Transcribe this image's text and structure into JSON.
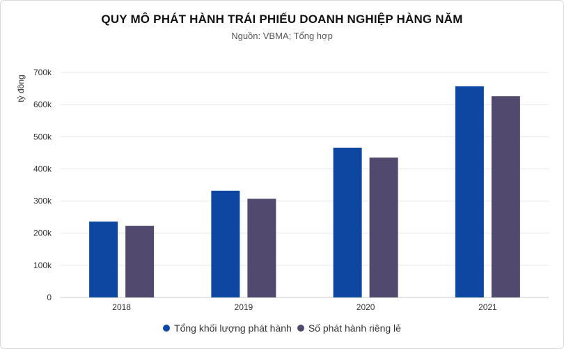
{
  "chart_data": {
    "type": "bar",
    "title": "QUY MÔ PHÁT HÀNH TRÁI PHIẾU DOANH NGHIỆP HÀNG NĂM",
    "subtitle": "Nguồn: VBMA; Tổng hợp",
    "ylabel": "tỷ đồng",
    "xlabel": "",
    "categories": [
      "2018",
      "2019",
      "2020",
      "2021"
    ],
    "ylim": [
      0,
      700000
    ],
    "yticks": [
      0,
      100000,
      200000,
      300000,
      400000,
      500000,
      600000,
      700000
    ],
    "ytick_labels": [
      "0",
      "100k",
      "200k",
      "300k",
      "400k",
      "500k",
      "600k",
      "700k"
    ],
    "grid": true,
    "legend_position": "bottom",
    "series": [
      {
        "name": "Tổng khối lượng phát hành",
        "color": "#0d47a1",
        "values": [
          236000,
          332000,
          466000,
          657000
        ]
      },
      {
        "name": "Số phát hành riêng lẻ",
        "color": "#514a6e",
        "values": [
          223000,
          307000,
          435000,
          626000
        ]
      }
    ]
  }
}
